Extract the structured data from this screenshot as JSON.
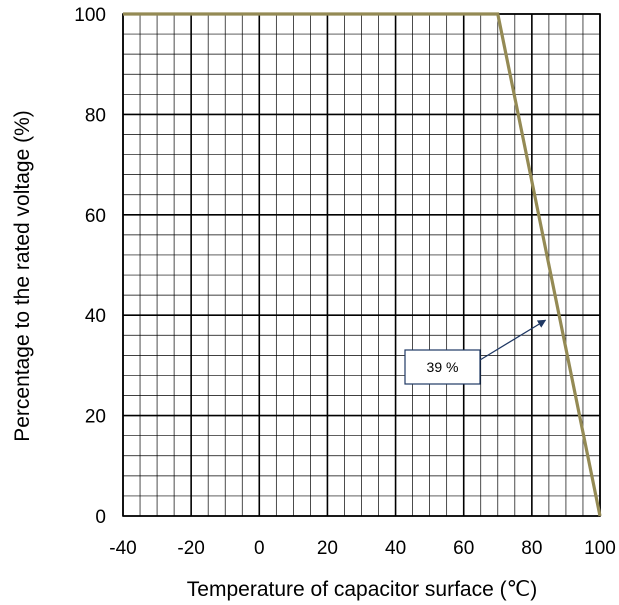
{
  "chart_data": {
    "type": "line",
    "xlabel": "Temperature of capacitor surface (℃)",
    "ylabel": "Percentage to the rated voltage  (%)",
    "xlim": [
      -40,
      100
    ],
    "ylim": [
      0,
      100
    ],
    "x_ticks": [
      "-40",
      "-20",
      "0",
      "20",
      "40",
      "60",
      "80",
      "100"
    ],
    "y_ticks": [
      "0",
      "20",
      "40",
      "60",
      "80",
      "100"
    ],
    "grid": true,
    "series": [
      {
        "color": "#948A54",
        "x": [
          -40,
          70,
          100
        ],
        "y": [
          100,
          100,
          0
        ]
      }
    ],
    "annotations": [
      {
        "text": "39 %",
        "x": 84,
        "y": 39
      }
    ]
  }
}
